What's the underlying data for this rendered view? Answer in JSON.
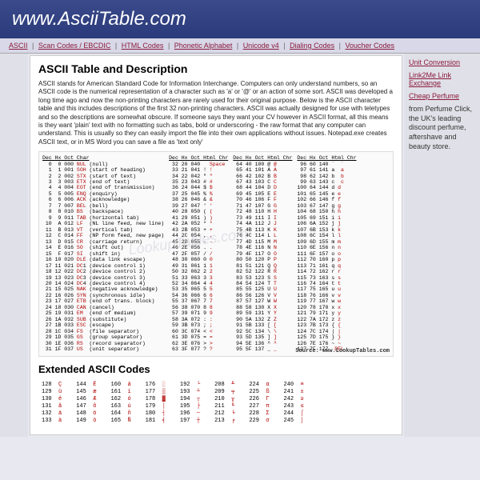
{
  "header": {
    "title": "www.AsciiTable.com"
  },
  "nav": {
    "items": [
      "ASCII",
      "Scan Codes / EBCDIC",
      "HTML Codes",
      "Phonetic Alphabet",
      "Unicode v4",
      "Dialing Codes",
      "Voucher Codes"
    ]
  },
  "main": {
    "title": "ASCII Table and Description",
    "description": "ASCII stands for American Standard Code for Information Interchange. Computers can only understand numbers, so an ASCII code is the numerical representation of a character such as 'a' or '@' or an action of some sort. ASCII was developed a long time ago and now the non-printing characters are rarely used for their original purpose. Below is the ASCII character table and this includes descriptions of the first 32 non-printing characters. ASCII was actually designed for use with teletypes and so the descriptions are somewhat obscure. If someone says they want your CV however in ASCII format, all this means is they want 'plain' text with no formatting such as tabs, bold or underscoring - the raw format that any computer can understand. This is usually so they can easily import the file into their own applications without issues. Notepad.exe creates ASCII text, or in MS Word you can save a file as 'text only'",
    "watermark": "LookupTables.com",
    "source": "Source:   www.LookupTables.com",
    "ext_title": "Extended ASCII Codes",
    "col1_header": "Dec Hx Oct Char",
    "col234_header": "Dec Hx Oct Html Chr",
    "col1": [
      "  0  0 000 NUL (null)",
      "  1  1 001 SOH (start of heading)",
      "  2  2 002 STX (start of text)",
      "  3  3 003 ETX (end of text)",
      "  4  4 004 EOT (end of transmission)",
      "  5  5 005 ENQ (enquiry)",
      "  6  6 006 ACK (acknowledge)",
      "  7  7 007 BEL (bell)",
      "  8  8 010 BS  (backspace)",
      "  9  9 011 TAB (horizontal tab)",
      " 10  A 012 LF  (NL line feed, new line)",
      " 11  B 013 VT  (vertical tab)",
      " 12  C 014 FF  (NP form feed, new page)",
      " 13  D 015 CR  (carriage return)",
      " 14  E 016 SO  (shift out)",
      " 15  F 017 SI  (shift in)",
      " 16 10 020 DLE (data link escape)",
      " 17 11 021 DC1 (device control 1)",
      " 18 12 022 DC2 (device control 2)",
      " 19 13 023 DC3 (device control 3)",
      " 20 14 024 DC4 (device control 4)",
      " 21 15 025 NAK (negative acknowledge)",
      " 22 16 026 SYN (synchronous idle)",
      " 23 17 027 ETB (end of trans. block)",
      " 24 18 030 CAN (cancel)",
      " 25 19 031 EM  (end of medium)",
      " 26 1A 032 SUB (substitute)",
      " 27 1B 033 ESC (escape)",
      " 28 1C 034 FS  (file separator)",
      " 29 1D 035 GS  (group separator)",
      " 30 1E 036 RS  (record separator)",
      " 31 1F 037 US  (unit separator)"
    ],
    "col2": [
      " 32 20 040 &#32; Space",
      " 33 21 041 &#33; !",
      " 34 22 042 &#34; \"",
      " 35 23 043 &#35; #",
      " 36 24 044 &#36; $",
      " 37 25 045 &#37; %",
      " 38 26 046 &#38; &",
      " 39 27 047 &#39; '",
      " 40 28 050 &#40; (",
      " 41 29 051 &#41; )",
      " 42 2A 052 &#42; *",
      " 43 2B 053 &#43; +",
      " 44 2C 054 &#44; ,",
      " 45 2D 055 &#45; -",
      " 46 2E 056 &#46; .",
      " 47 2F 057 &#47; /",
      " 48 30 060 &#48; 0",
      " 49 31 061 &#49; 1",
      " 50 32 062 &#50; 2",
      " 51 33 063 &#51; 3",
      " 52 34 064 &#52; 4",
      " 53 35 065 &#53; 5",
      " 54 36 066 &#54; 6",
      " 55 37 067 &#55; 7",
      " 56 38 070 &#56; 8",
      " 57 39 071 &#57; 9",
      " 58 3A 072 &#58; :",
      " 59 3B 073 &#59; ;",
      " 60 3C 074 &#60; <",
      " 61 3D 075 &#61; =",
      " 62 3E 076 &#62; >",
      " 63 3F 077 &#63; ?"
    ],
    "col3": [
      " 64 40 100 &#64; @",
      " 65 41 101 &#65; A",
      " 66 42 102 &#66; B",
      " 67 43 103 &#67; C",
      " 68 44 104 &#68; D",
      " 69 45 105 &#69; E",
      " 70 46 106 &#70; F",
      " 71 47 107 &#71; G",
      " 72 48 110 &#72; H",
      " 73 49 111 &#73; I",
      " 74 4A 112 &#74; J",
      " 75 4B 113 &#75; K",
      " 76 4C 114 &#76; L",
      " 77 4D 115 &#77; M",
      " 78 4E 116 &#78; N",
      " 79 4F 117 &#79; O",
      " 80 50 120 &#80; P",
      " 81 51 121 &#81; Q",
      " 82 52 122 &#82; R",
      " 83 53 123 &#83; S",
      " 84 54 124 &#84; T",
      " 85 55 125 &#85; U",
      " 86 56 126 &#86; V",
      " 87 57 127 &#87; W",
      " 88 58 130 &#88; X",
      " 89 59 131 &#89; Y",
      " 90 5A 132 &#90; Z",
      " 91 5B 133 &#91; [",
      " 92 5C 134 &#92; \\",
      " 93 5D 135 &#93; ]",
      " 94 5E 136 &#94; ^",
      " 95 5F 137 &#95; _"
    ],
    "col4": [
      " 96 60 140 &#96;  `",
      " 97 61 141 &#97;  a",
      " 98 62 142 &#98;  b",
      " 99 63 143 &#99;  c",
      "100 64 144 &#100; d",
      "101 65 145 &#101; e",
      "102 66 146 &#102; f",
      "103 67 147 &#103; g",
      "104 68 150 &#104; h",
      "105 69 151 &#105; i",
      "106 6A 152 &#106; j",
      "107 6B 153 &#107; k",
      "108 6C 154 &#108; l",
      "109 6D 155 &#109; m",
      "110 6E 156 &#110; n",
      "111 6F 157 &#111; o",
      "112 70 160 &#112; p",
      "113 71 161 &#113; q",
      "114 72 162 &#114; r",
      "115 73 163 &#115; s",
      "116 74 164 &#116; t",
      "117 75 165 &#117; u",
      "118 76 166 &#118; v",
      "119 77 167 &#119; w",
      "120 78 170 &#120; x",
      "121 79 171 &#121; y",
      "122 7A 172 &#122; z",
      "123 7B 173 &#123; {",
      "124 7C 174 &#124; |",
      "125 7D 175 &#125; }",
      "126 7E 176 &#126; ~",
      "127 7F 177 &#127; DEL"
    ],
    "ext": [
      {
        "d": "128",
        "s": "Ç",
        "d2": "144",
        "s2": "É",
        "d3": "160",
        "s3": "á",
        "d4": "176",
        "s4": "░",
        "d5": "192",
        "s5": "└",
        "d6": "208",
        "s6": "╨",
        "d7": "224",
        "s7": "α",
        "d8": "240",
        "s8": "≡"
      },
      {
        "d": "129",
        "s": "ü",
        "d2": "145",
        "s2": "æ",
        "d3": "161",
        "s3": "í",
        "d4": "177",
        "s4": "▒",
        "d5": "193",
        "s5": "┴",
        "d6": "209",
        "s6": "╤",
        "d7": "225",
        "s7": "ß",
        "d8": "241",
        "s8": "±"
      },
      {
        "d": "130",
        "s": "é",
        "d2": "146",
        "s2": "Æ",
        "d3": "162",
        "s3": "ó",
        "d4": "178",
        "s4": "▓",
        "d5": "194",
        "s5": "┬",
        "d6": "210",
        "s6": "╥",
        "d7": "226",
        "s7": "Γ",
        "d8": "242",
        "s8": "≥"
      },
      {
        "d": "131",
        "s": "â",
        "d2": "147",
        "s2": "ô",
        "d3": "163",
        "s3": "ú",
        "d4": "179",
        "s4": "│",
        "d5": "195",
        "s5": "├",
        "d6": "211",
        "s6": "╙",
        "d7": "227",
        "s7": "π",
        "d8": "243",
        "s8": "≤"
      },
      {
        "d": "132",
        "s": "ä",
        "d2": "148",
        "s2": "ö",
        "d3": "164",
        "s3": "ñ",
        "d4": "180",
        "s4": "┤",
        "d5": "196",
        "s5": "─",
        "d6": "212",
        "s6": "╘",
        "d7": "228",
        "s7": "Σ",
        "d8": "244",
        "s8": "⌠"
      },
      {
        "d": "133",
        "s": "à",
        "d2": "149",
        "s2": "ò",
        "d3": "165",
        "s3": "Ñ",
        "d4": "181",
        "s4": "╡",
        "d5": "197",
        "s5": "┼",
        "d6": "213",
        "s6": "╒",
        "d7": "229",
        "s7": "σ",
        "d8": "245",
        "s8": "⌡"
      }
    ]
  },
  "sidebar": {
    "links": [
      "Unit Conversion",
      "Link2Me Link Exchange",
      "Cheap Perfume"
    ],
    "promo": "from Perfume Click, the UK's leading discount perfume, aftershave and beauty store."
  }
}
